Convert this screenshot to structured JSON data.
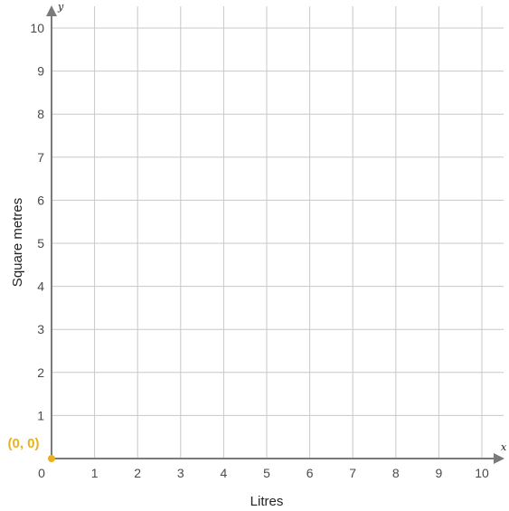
{
  "chart_data": {
    "type": "scatter",
    "title": "",
    "xlabel": "Litres",
    "ylabel": "Square metres",
    "x_axis_letter": "x",
    "y_axis_letter": "y",
    "xlim": [
      0,
      10
    ],
    "ylim": [
      0,
      10
    ],
    "x_ticks": [
      "1",
      "2",
      "3",
      "4",
      "5",
      "6",
      "7",
      "8",
      "9",
      "10"
    ],
    "y_ticks": [
      "1",
      "2",
      "3",
      "4",
      "5",
      "6",
      "7",
      "8",
      "9",
      "10"
    ],
    "origin_label": "0",
    "grid": true,
    "points": [
      {
        "x": 0,
        "y": 0,
        "label": "(0, 0)"
      }
    ],
    "colors": {
      "grid": "#c8c8c8",
      "axis": "#7a7a7a",
      "point": "#e8b21c"
    }
  }
}
